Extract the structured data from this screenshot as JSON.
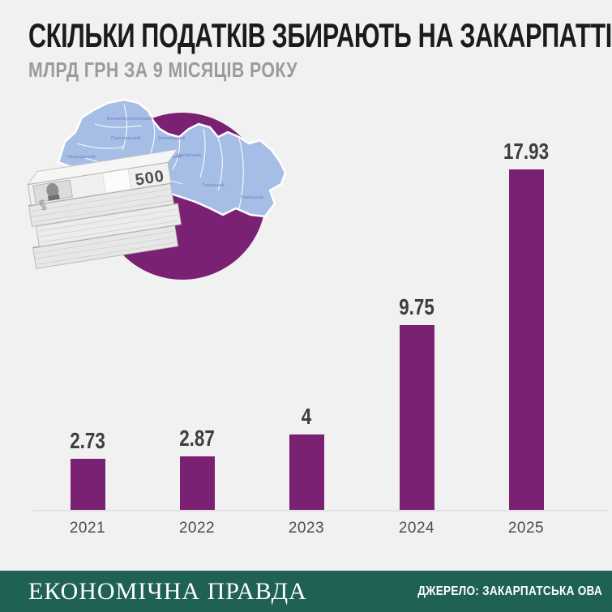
{
  "title": "СКІЛЬКИ ПОДАТКІВ ЗБИРАЮТЬ НА ЗАКАРПАТТІ",
  "subtitle": "МЛРД ГРН ЗА 9 МІСЯЦІВ РОКУ",
  "chart_data": {
    "type": "bar",
    "categories": [
      "2021",
      "2022",
      "2023",
      "2024",
      "2025"
    ],
    "values": [
      2.73,
      2.87,
      4,
      9.75,
      17.93
    ],
    "value_labels": [
      "2.73",
      "2.87",
      "4",
      "9.75",
      "17.93"
    ],
    "title": "СКІЛЬКИ ПОДАТКІВ ЗБИРАЮТЬ НА ЗАКАРПАТТІ",
    "subtitle": "МЛРД ГРН ЗА 9 МІСЯЦІВ РОКУ",
    "unit": "млрд грн",
    "xlabel": "",
    "ylabel": "",
    "ylim": [
      0,
      18
    ],
    "grid": false,
    "legend": false,
    "bar_color": "#7b2173"
  },
  "illustration": {
    "name": "zakarpattia-oblast-map-with-hryvnia-stacks",
    "banknote_value": "500",
    "districts": [
      "Великоберезнянський",
      "Перечинський",
      "Ужгородський",
      "Воловецький",
      "Свалявський",
      "Мукачівський",
      "Міжгірський",
      "Тячівський",
      "Рахівський"
    ]
  },
  "footer": {
    "brand": "ЕКОНОМІЧНА ПРАВДА",
    "source": "ДЖЕРЕЛО: ЗАКАРПАТСЬКА ОВА"
  },
  "colors": {
    "background": "#f1f1f2",
    "accent_purple": "#7b2173",
    "map_blue": "#a6bde6",
    "map_border": "#ffffff",
    "district_label_blue": "#6d84c2",
    "footer_green": "#206156",
    "title_text": "#1b1b1b",
    "subtitle_text": "#9b9b9b",
    "value_text": "#3d3d3d",
    "year_text": "#4c4c4c"
  }
}
